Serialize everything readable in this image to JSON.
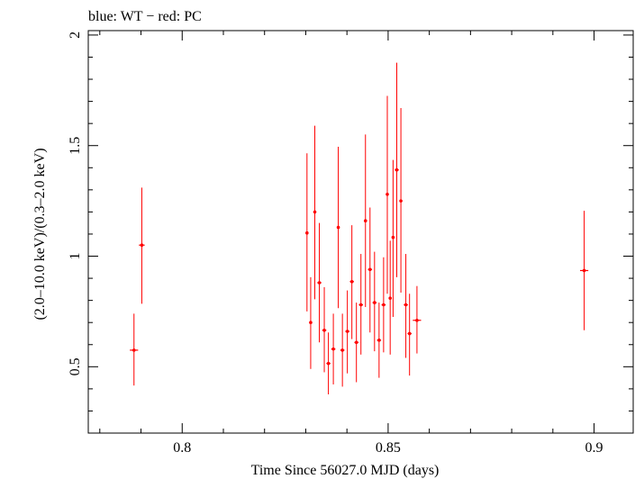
{
  "chart_data": {
    "type": "scatter",
    "title": "blue: WT − red: PC",
    "xlabel": "Time Since 56027.0 MJD (days)",
    "ylabel": "(2.0–10.0 keV)/(0.3–2.0 keV)",
    "xlim": [
      0.7772,
      0.9095
    ],
    "ylim": [
      0.2,
      2.02
    ],
    "xticks": [
      0.8,
      0.85,
      0.9
    ],
    "xtick_labels": [
      "0.8",
      "0.85",
      "0.9"
    ],
    "yticks": [
      0.5,
      1,
      1.5,
      2
    ],
    "ytick_labels": [
      "0.5",
      "1",
      "1.5",
      "2"
    ],
    "series": [
      {
        "name": "PC",
        "color": "#ff0000",
        "points": [
          {
            "x": 0.7883,
            "y": 0.575,
            "xerr": 0.001,
            "ylo": 0.415,
            "yhi": 0.74
          },
          {
            "x": 0.7902,
            "y": 1.05,
            "xerr": 0.0007,
            "ylo": 0.785,
            "yhi": 1.31
          },
          {
            "x": 0.8303,
            "y": 1.105,
            "xerr": 0.0003,
            "ylo": 0.75,
            "yhi": 1.465
          },
          {
            "x": 0.8312,
            "y": 0.7,
            "xerr": 0.0003,
            "ylo": 0.49,
            "yhi": 0.905
          },
          {
            "x": 0.8322,
            "y": 1.2,
            "xerr": 0.0003,
            "ylo": 0.805,
            "yhi": 1.59
          },
          {
            "x": 0.8333,
            "y": 0.88,
            "xerr": 0.0005,
            "ylo": 0.61,
            "yhi": 1.15
          },
          {
            "x": 0.8345,
            "y": 0.665,
            "xerr": 0.0005,
            "ylo": 0.475,
            "yhi": 0.86
          },
          {
            "x": 0.8355,
            "y": 0.515,
            "xerr": 0.0005,
            "ylo": 0.375,
            "yhi": 0.655
          },
          {
            "x": 0.8367,
            "y": 0.58,
            "xerr": 0.0005,
            "ylo": 0.42,
            "yhi": 0.74
          },
          {
            "x": 0.8379,
            "y": 1.13,
            "xerr": 0.0003,
            "ylo": 0.765,
            "yhi": 1.495
          },
          {
            "x": 0.8389,
            "y": 0.575,
            "xerr": 0.0005,
            "ylo": 0.41,
            "yhi": 0.74
          },
          {
            "x": 0.8401,
            "y": 0.66,
            "xerr": 0.0005,
            "ylo": 0.47,
            "yhi": 0.845
          },
          {
            "x": 0.8412,
            "y": 0.885,
            "xerr": 0.0005,
            "ylo": 0.625,
            "yhi": 1.14
          },
          {
            "x": 0.8423,
            "y": 0.61,
            "xerr": 0.0005,
            "ylo": 0.43,
            "yhi": 0.79
          },
          {
            "x": 0.8434,
            "y": 0.78,
            "xerr": 0.0005,
            "ylo": 0.555,
            "yhi": 1.01
          },
          {
            "x": 0.8445,
            "y": 1.16,
            "xerr": 0.0003,
            "ylo": 0.77,
            "yhi": 1.55
          },
          {
            "x": 0.8456,
            "y": 0.94,
            "xerr": 0.0005,
            "ylo": 0.655,
            "yhi": 1.22
          },
          {
            "x": 0.8467,
            "y": 0.79,
            "xerr": 0.0005,
            "ylo": 0.57,
            "yhi": 1.02
          },
          {
            "x": 0.8478,
            "y": 0.62,
            "xerr": 0.0005,
            "ylo": 0.45,
            "yhi": 0.79
          },
          {
            "x": 0.8489,
            "y": 0.78,
            "xerr": 0.0005,
            "ylo": 0.565,
            "yhi": 0.995
          },
          {
            "x": 0.8498,
            "y": 1.28,
            "xerr": 0.0003,
            "ylo": 0.83,
            "yhi": 1.725
          },
          {
            "x": 0.8505,
            "y": 0.81,
            "xerr": 0.0003,
            "ylo": 0.555,
            "yhi": 1.07
          },
          {
            "x": 0.8512,
            "y": 1.085,
            "xerr": 0.0003,
            "ylo": 0.725,
            "yhi": 1.435
          },
          {
            "x": 0.8521,
            "y": 1.39,
            "xerr": 0.0005,
            "ylo": 0.905,
            "yhi": 1.875
          },
          {
            "x": 0.8531,
            "y": 1.25,
            "xerr": 0.0003,
            "ylo": 0.835,
            "yhi": 1.67
          },
          {
            "x": 0.8543,
            "y": 0.78,
            "xerr": 0.0005,
            "ylo": 0.54,
            "yhi": 1.01
          },
          {
            "x": 0.8552,
            "y": 0.65,
            "xerr": 0.0005,
            "ylo": 0.46,
            "yhi": 0.83
          },
          {
            "x": 0.857,
            "y": 0.71,
            "xerr": 0.001,
            "ylo": 0.56,
            "yhi": 0.865
          },
          {
            "x": 0.8976,
            "y": 0.935,
            "xerr": 0.001,
            "ylo": 0.665,
            "yhi": 1.205
          }
        ]
      }
    ]
  }
}
